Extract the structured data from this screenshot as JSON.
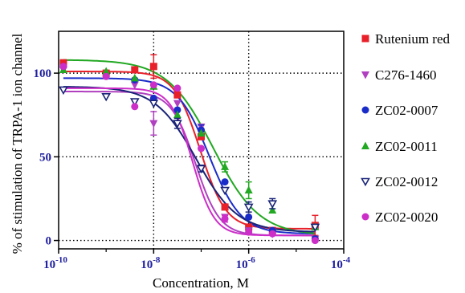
{
  "chart_data": {
    "type": "scatter",
    "title": "",
    "xlabel": "Concentration, M",
    "ylabel": "% of stimulation of TRPA-1 ion channel",
    "xscale": "log",
    "xlim": [
      1e-10,
      0.0001
    ],
    "ylim": [
      -5,
      125
    ],
    "x_ticks": [
      {
        "base": "10",
        "exp": "-10"
      },
      {
        "base": "10",
        "exp": "-8"
      },
      {
        "base": "10",
        "exp": "-6"
      },
      {
        "base": "10",
        "exp": "-4"
      }
    ],
    "y_ticks": [
      "0",
      "50",
      "100"
    ],
    "grid": "dotted lines at tick positions",
    "legend_position": "right",
    "series": [
      {
        "name": "Rutenium red",
        "color": "#e8202a",
        "marker": "square",
        "x": [
          1.26e-10,
          1e-09,
          4e-09,
          1e-08,
          3.16e-08,
          1e-07,
          3.16e-07,
          1e-06,
          3.16e-06,
          2.5e-05
        ],
        "y": [
          106,
          100,
          102,
          104,
          87,
          62,
          20,
          8,
          6,
          9
        ],
        "err": [
          2,
          0,
          0,
          7,
          0,
          0,
          0,
          0,
          0,
          6
        ],
        "fit": {
          "top": 101,
          "bottom": 7,
          "log_ic50": -7.02,
          "hill": 1.6
        }
      },
      {
        "name": "C276-1460",
        "color": "#b040c0",
        "marker": "triangle-down",
        "x": [
          1.26e-10,
          4e-09,
          1e-08,
          3.16e-08,
          1e-07,
          3.16e-07,
          1e-06,
          3.16e-06,
          2.5e-05
        ],
        "y": [
          102,
          93,
          70,
          82,
          68,
          14,
          6,
          4,
          1
        ],
        "err": [
          0,
          0,
          7,
          0,
          0,
          0,
          0,
          0,
          0
        ],
        "fit": {
          "top": 89,
          "bottom": 3,
          "log_ic50": -7.12,
          "hill": 1.7
        }
      },
      {
        "name": "ZC02-0007",
        "color": "#1a2cc8",
        "marker": "circle",
        "x": [
          1.26e-10,
          4e-09,
          1e-08,
          3.16e-08,
          1e-07,
          3.16e-07,
          1e-06,
          3.16e-06,
          2.5e-05
        ],
        "y": [
          104,
          96,
          85,
          78,
          66,
          35,
          14,
          6,
          1
        ],
        "err": [
          0,
          0,
          0,
          0,
          3,
          0,
          0,
          0,
          0
        ],
        "fit": {
          "top": 97,
          "bottom": 4,
          "log_ic50": -6.83,
          "hill": 1.3
        }
      },
      {
        "name": "ZC02-0011",
        "color": "#22a822",
        "marker": "triangle-up",
        "x": [
          1.26e-10,
          1e-09,
          4e-09,
          1e-08,
          3.16e-08,
          1e-07,
          3.16e-07,
          1e-06,
          3.16e-06,
          2.5e-05
        ],
        "y": [
          102,
          101,
          97,
          92,
          75,
          64,
          44,
          30,
          18,
          8
        ],
        "err": [
          0,
          0,
          0,
          0,
          0,
          0,
          3,
          5,
          0,
          0
        ],
        "fit": {
          "top": 108,
          "bottom": 3,
          "log_ic50": -6.75,
          "hill": 0.9
        }
      },
      {
        "name": "ZC02-0012",
        "color": "#1a2478",
        "marker": "triangle-down-open",
        "x": [
          1.26e-10,
          1e-09,
          4e-09,
          1e-08,
          3.16e-08,
          1e-07,
          3.16e-07,
          1e-06,
          3.16e-06,
          2.5e-05
        ],
        "y": [
          90,
          86,
          83,
          82,
          70,
          43,
          30,
          20,
          22,
          8
        ],
        "err": [
          0,
          0,
          0,
          0,
          3,
          2,
          0,
          3,
          3,
          0
        ],
        "fit": {
          "top": 92,
          "bottom": 5,
          "log_ic50": -7.1,
          "hill": 1.0
        }
      },
      {
        "name": "ZC02-0020",
        "color": "#cc2ec8",
        "marker": "circle",
        "x": [
          1.26e-10,
          1e-09,
          4e-09,
          1e-08,
          3.16e-08,
          1e-07,
          3.16e-07,
          1e-06,
          3.16e-06,
          2.5e-05
        ],
        "y": [
          104,
          98,
          80,
          93,
          91,
          55,
          13,
          5,
          4,
          0
        ],
        "err": [
          0,
          0,
          0,
          0,
          0,
          0,
          2,
          0,
          0,
          0
        ],
        "fit": {
          "top": 91,
          "bottom": 3,
          "log_ic50": -7.18,
          "hill": 1.9
        }
      }
    ]
  }
}
